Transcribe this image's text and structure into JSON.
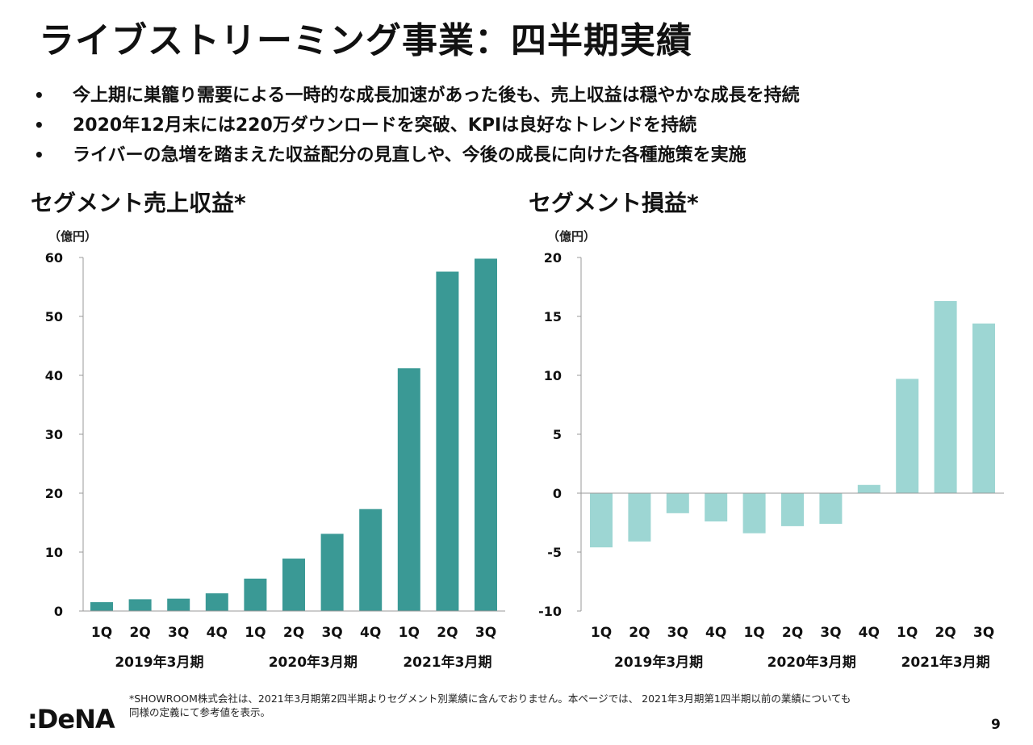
{
  "page": {
    "title": "ライブストリーミング事業：四半期実績",
    "bullets": [
      "今上期に巣籠り需要による一時的な成長加速があった後も、売上収益は穏やかな成長を持続",
      "2020年12月末には220万ダウンロードを突破、KPIは良好なトレンドを持続",
      "ライバーの急増を踏まえた収益配分の見直しや、今後の成長に向けた各種施策を実施"
    ],
    "bullet_symbol": "•",
    "footnote_line1": "*SHOWROOM株式会社は、2021年3月期第2四半期よりセグメント別業績に含んでおりません。本ページでは、 2021年3月期第1四半期以前の業績についても",
    "footnote_line2": "同様の定義にて参考値を表示。",
    "logo_text": ":DeNA",
    "page_number": "9"
  },
  "chart_data": [
    {
      "type": "bar",
      "title": "セグメント売上収益*",
      "unit_label": "（億円）",
      "categories": [
        "1Q",
        "2Q",
        "3Q",
        "4Q",
        "1Q",
        "2Q",
        "3Q",
        "4Q",
        "1Q",
        "2Q",
        "3Q"
      ],
      "groups": [
        {
          "label": "2019年3月期",
          "start": 0,
          "end": 3
        },
        {
          "label": "2020年3月期",
          "start": 4,
          "end": 7
        },
        {
          "label": "2021年3月期",
          "start": 8,
          "end": 10
        }
      ],
      "values": [
        1.5,
        2.0,
        2.1,
        3.0,
        5.5,
        8.9,
        13.1,
        17.3,
        41.2,
        57.6,
        59.8
      ],
      "ylim": [
        0,
        60
      ],
      "yticks": [
        0,
        10,
        20,
        30,
        40,
        50,
        60
      ],
      "color": "#3a9995"
    },
    {
      "type": "bar",
      "title": "セグメント損益*",
      "unit_label": "（億円）",
      "categories": [
        "1Q",
        "2Q",
        "3Q",
        "4Q",
        "1Q",
        "2Q",
        "3Q",
        "4Q",
        "1Q",
        "2Q",
        "3Q"
      ],
      "groups": [
        {
          "label": "2019年3月期",
          "start": 0,
          "end": 3
        },
        {
          "label": "2020年3月期",
          "start": 4,
          "end": 7
        },
        {
          "label": "2021年3月期",
          "start": 8,
          "end": 10
        }
      ],
      "values": [
        -4.6,
        -4.1,
        -1.7,
        -2.4,
        -3.4,
        -2.8,
        -2.6,
        0.7,
        9.7,
        16.3,
        14.4
      ],
      "ylim": [
        -10,
        20
      ],
      "yticks": [
        -10,
        -5,
        0,
        5,
        10,
        15,
        20
      ],
      "color": "#9dd6d3"
    }
  ]
}
